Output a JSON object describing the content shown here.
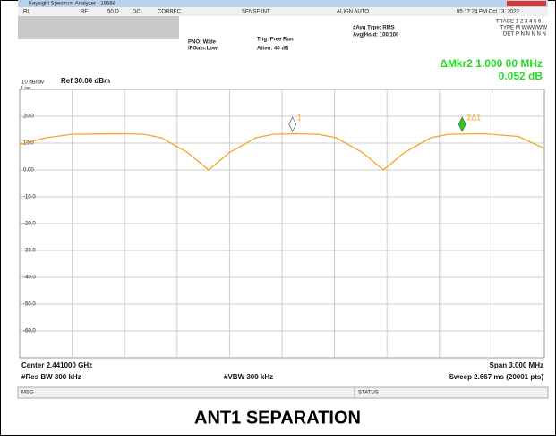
{
  "window": {
    "title": "Keysight Spectrum Analyzer - 19568",
    "status": [
      "RL",
      "RF",
      "50 Ω",
      "DC",
      "CORREC",
      "SENSE:INT",
      "ALIGN AUTO",
      "05:17:24 PM Oct 13, 2022"
    ],
    "pno": "PNO: Wide",
    "ifgain": "IFGain:Low",
    "trig": "Trig: Free Run",
    "atten": "Atten: 40 dB",
    "avg_type": "#Avg Type: RMS",
    "avg_hold": "Avg|Hold: 100/100",
    "trace_labels": [
      "TRACE",
      "TYPE",
      "DET"
    ],
    "trace_values": [
      "1 2 3 4 5 6",
      "M WWWWW",
      "P N N N N N"
    ],
    "mkr_freq": "ΔMkr2 1.000 00 MHz",
    "mkr_amp": "0.052 dB",
    "scale": "10 dB/div",
    "log": "Log",
    "ref": "Ref 30.00 dBm",
    "center": "Center 2.441000 GHz",
    "res_bw": "#Res BW 300 kHz",
    "vbw": "#VBW 300 kHz",
    "span": "Span 3.000 MHz",
    "sweep": "Sweep  2.667 ms (20001 pts)",
    "msg": "MSG",
    "status_bar": "STATUS"
  },
  "caption": "ANT1 SEPARATION",
  "chart_data": {
    "type": "line",
    "color": "#f5a623",
    "x": [
      2.4395,
      2.43965,
      2.4398,
      2.44008,
      2.44021,
      2.44031,
      2.44046,
      2.44058,
      2.4407,
      2.44085,
      2.44095,
      2.44108,
      2.44121,
      2.44131,
      2.44146,
      2.44158,
      2.4417,
      2.44185,
      2.44195,
      2.44215,
      2.44235,
      2.4425
    ],
    "values": [
      9.5,
      12,
      13.3,
      13.5,
      13.3,
      12,
      6.5,
      0,
      6.5,
      12,
      13.3,
      13.5,
      13.3,
      12,
      6.5,
      0,
      6.5,
      12,
      13.3,
      13.5,
      12.5,
      8
    ],
    "xlim": [
      2.4395,
      2.4425
    ],
    "ylim": [
      -70,
      30
    ],
    "yticks": [
      {
        "value": 20,
        "label": "20.0"
      },
      {
        "value": 10,
        "label": "10.0"
      },
      {
        "value": 0,
        "label": "0.00"
      },
      {
        "value": -10,
        "label": "-10.0"
      },
      {
        "value": -20,
        "label": "-20.0"
      },
      {
        "value": -30,
        "label": "-30.0"
      },
      {
        "value": -40,
        "label": "-40.0"
      },
      {
        "value": -50,
        "label": "-50.0"
      },
      {
        "value": -60,
        "label": "-60.0"
      }
    ],
    "grid": true,
    "markers": [
      {
        "label": "1",
        "x": 2.44106,
        "y": 17,
        "color": "#ffffff"
      },
      {
        "label": "2Δ1",
        "x": 2.44203,
        "y": 17,
        "color": "#22cc22"
      }
    ]
  }
}
